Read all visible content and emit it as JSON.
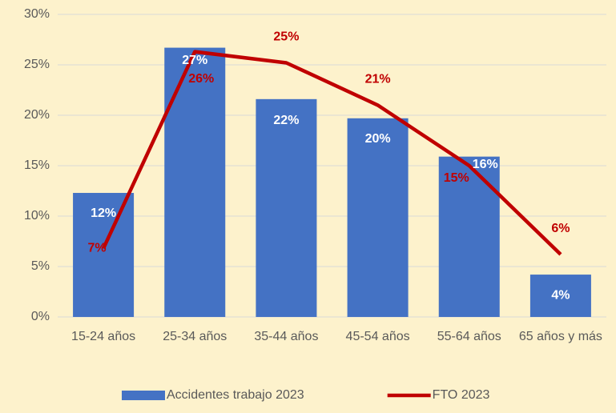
{
  "chart_data": {
    "type": "combo",
    "categories": [
      "15-24 años",
      "25-34 años",
      "35-44 años",
      "45-54 años",
      "55-64 años",
      "65 años y más"
    ],
    "series": [
      {
        "name": "Accidentes trabajo 2023",
        "type": "bar",
        "color": "#4472c4",
        "values": [
          12.3,
          26.7,
          21.6,
          19.7,
          15.9,
          4.2
        ],
        "value_labels": [
          "12%",
          "27%",
          "22%",
          "20%",
          "16%",
          "4%"
        ]
      },
      {
        "name": "FTO 2023",
        "type": "line",
        "color": "#c00000",
        "values": [
          6.8,
          26.3,
          25.2,
          21.0,
          15.0,
          6.2
        ],
        "value_labels": [
          "7%",
          "26%",
          "25%",
          "21%",
          "15%",
          "6%"
        ]
      }
    ],
    "ylim": [
      0,
      30
    ],
    "yticks": [
      {
        "value": 0,
        "label": "0%"
      },
      {
        "value": 5,
        "label": "5%"
      },
      {
        "value": 10,
        "label": "10%"
      },
      {
        "value": 15,
        "label": "15%"
      },
      {
        "value": 20,
        "label": "20%"
      },
      {
        "value": 25,
        "label": "25%"
      },
      {
        "value": 30,
        "label": "30%"
      }
    ],
    "grid": true,
    "legend": "bottom"
  }
}
